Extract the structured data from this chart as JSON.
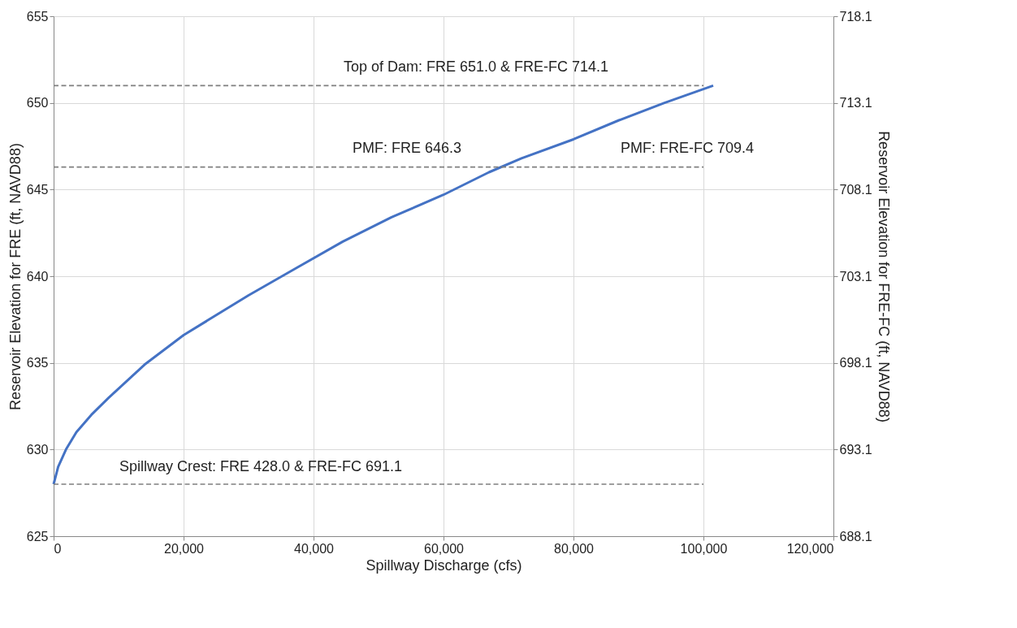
{
  "chart_data": {
    "type": "line",
    "xlabel": "Spillway Discharge (cfs)",
    "ylabel": "Reservoir Elevation for FRE (ft, NAVD88)",
    "y2label": "Reservoir Elevation for FRE-FC (ft, NAVD88)",
    "xlim": [
      0,
      120000
    ],
    "xticks": [
      0,
      {
        "value": 20000,
        "label": "20,000"
      },
      {
        "value": 40000,
        "label": "40,000"
      },
      {
        "value": 60000,
        "label": "60,000"
      },
      {
        "value": 80000,
        "label": "80,000"
      },
      {
        "value": 100000,
        "label": "100,000"
      },
      {
        "value": 120000,
        "label": "120,000"
      }
    ],
    "ylim": [
      625,
      655
    ],
    "yticks": [
      625,
      630,
      635,
      640,
      645,
      650,
      655
    ],
    "y2lim": [
      688.1,
      718.1
    ],
    "y2ticks": [
      688.1,
      693.1,
      698.1,
      703.1,
      708.1,
      713.1,
      718.1
    ],
    "grid": true,
    "marker": "none",
    "series": [
      {
        "color": "#4472c4",
        "line_style": "solid",
        "x": [
          0,
          700,
          1900,
          3500,
          5800,
          8500,
          14000,
          20000,
          30000,
          37000,
          44500,
          52000,
          60000,
          67000,
          72000,
          80000,
          87000,
          94000,
          101500
        ],
        "values": [
          628,
          629,
          630,
          631,
          632,
          633,
          634.9,
          636.6,
          638.9,
          640.4,
          642,
          643.4,
          644.7,
          646,
          646.8,
          647.9,
          649,
          650,
          651
        ]
      },
      {
        "color": "#7f7f7f",
        "line_style": "dashed",
        "x": [
          0,
          100000
        ],
        "values": [
          651,
          651
        ]
      },
      {
        "color": "#7f7f7f",
        "line_style": "dashed",
        "x": [
          0,
          100000
        ],
        "values": [
          646.3,
          646.3
        ]
      },
      {
        "color": "#7f7f7f",
        "line_style": "dashed",
        "x": [
          0,
          100000
        ],
        "values": [
          628,
          628
        ]
      }
    ],
    "annotations": [
      "Top of Dam: FRE 651.0 & FRE-FC 714.1",
      "PMF: FRE 646.3",
      "PMF: FRE-FC 709.4",
      "Spillway Crest: FRE 428.0 & FRE-FC 691.1"
    ]
  }
}
